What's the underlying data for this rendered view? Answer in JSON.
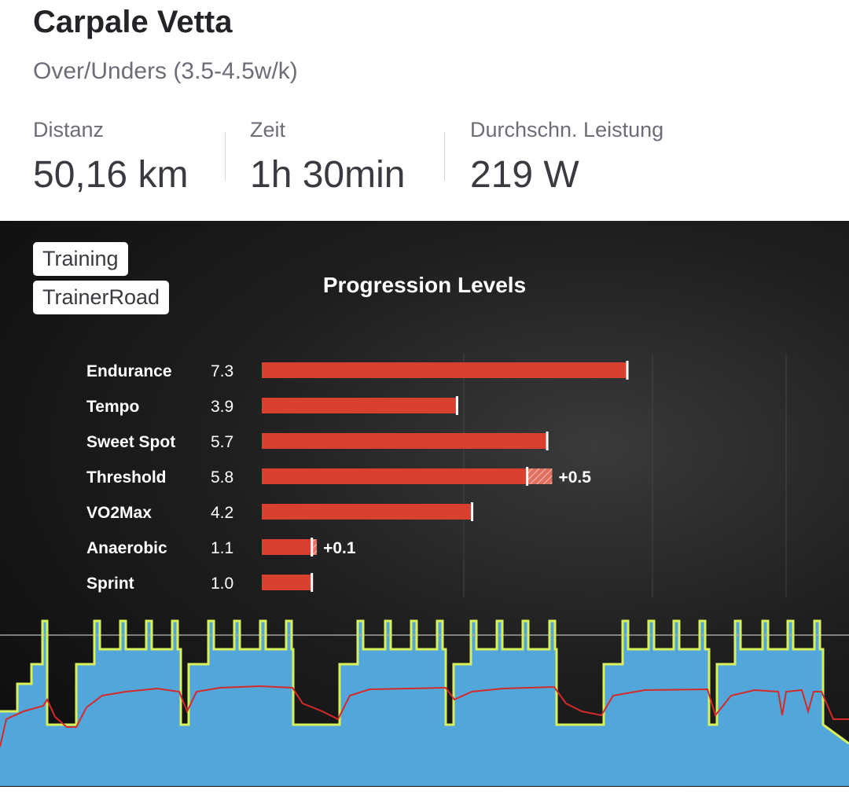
{
  "activity": {
    "title": "Carpale Vetta",
    "subtitle": "Over/Unders (3.5-4.5w/k)"
  },
  "stats": [
    {
      "label": "Distanz",
      "value": "50,16 km"
    },
    {
      "label": "Zeit",
      "value": "1h 30min"
    },
    {
      "label": "Durchschn. Leistung",
      "value": "219 W"
    }
  ],
  "tags": [
    "Training",
    "TrainerRoad"
  ],
  "colors": {
    "bar": "#d9402f",
    "workout_fill": "#52a6da",
    "target_line": "#d8f05a",
    "power_line": "#d42a2a"
  },
  "chart_data": {
    "type": "bar",
    "orientation": "horizontal",
    "title": "Progression Levels",
    "categories": [
      "Endurance",
      "Tempo",
      "Sweet Spot",
      "Threshold",
      "VO2Max",
      "Anaerobic",
      "Sprint"
    ],
    "values": [
      7.3,
      3.9,
      5.7,
      5.8,
      4.2,
      1.1,
      1.0
    ],
    "value_labels": [
      "7.3",
      "3.9",
      "5.7",
      "5.8",
      "4.2",
      "1.1",
      "1.0"
    ],
    "increments": [
      null,
      null,
      null,
      0.5,
      null,
      0.1,
      null
    ],
    "increment_labels": [
      "",
      "",
      "",
      "+0.5",
      "",
      "+0.1",
      ""
    ],
    "xlim": [
      0,
      7.3
    ]
  }
}
